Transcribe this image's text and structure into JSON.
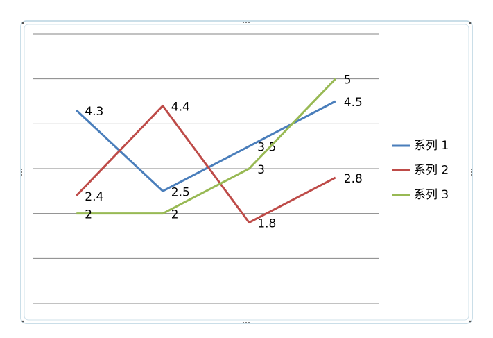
{
  "chart_data": {
    "type": "line",
    "categories": [
      null,
      null,
      null,
      null
    ],
    "series": [
      {
        "name": "系列 1",
        "color": "#4a7ebb",
        "values": [
          4.3,
          2.5,
          3.5,
          4.5
        ]
      },
      {
        "name": "系列 2",
        "color": "#be4b48",
        "values": [
          2.4,
          4.4,
          1.8,
          2.8
        ]
      },
      {
        "name": "系列 3",
        "color": "#98b954",
        "values": [
          2,
          2,
          3,
          5
        ]
      }
    ],
    "ylim": [
      0,
      6
    ],
    "yticks": [
      0,
      1,
      2,
      3,
      4,
      5,
      6
    ],
    "grid": true,
    "legend": "right"
  }
}
